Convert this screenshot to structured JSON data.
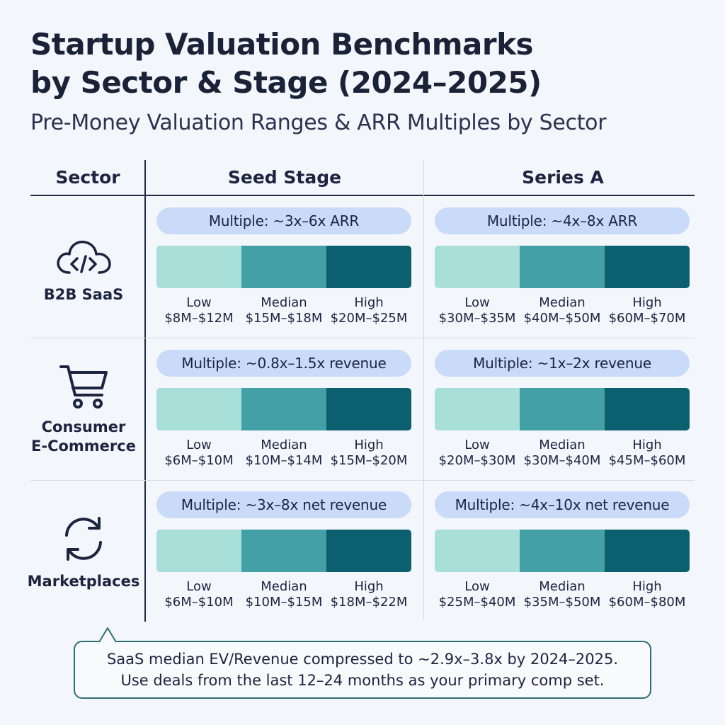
{
  "title": {
    "line1": "Startup Valuation Benchmarks",
    "line2": "by Sector & Stage (2024–2025)"
  },
  "subtitle": "Pre-Money Valuation Ranges & ARR Multiples by Sector",
  "columns": {
    "sector": "Sector",
    "seed": "Seed Stage",
    "series_a": "Series A"
  },
  "colors": {
    "low": "#a9dfd9",
    "median": "#44a0a7",
    "high": "#0c5f6f",
    "pill": "#c9dbf9"
  },
  "rows": [
    {
      "name": "B2B SaaS",
      "icon": "cloud-code-icon",
      "seed": {
        "multiple": "Multiple: ~3x–6x ARR",
        "low_label": "Low",
        "low_range": "$8M–$12M",
        "median_label": "Median",
        "median_range": "$15M–$18M",
        "high_label": "High",
        "high_range": "$20M–$25M"
      },
      "series_a": {
        "multiple": "Multiple: ~4x–8x ARR",
        "low_label": "Low",
        "low_range": "$30M–$35M",
        "median_label": "Median",
        "median_range": "$40M–$50M",
        "high_label": "High",
        "high_range": "$60M–$70M"
      }
    },
    {
      "name_line1": "Consumer",
      "name_line2": "E-Commerce",
      "icon": "shopping-cart-icon",
      "seed": {
        "multiple": "Multiple: ~0.8x–1.5x revenue",
        "low_label": "Low",
        "low_range": "$6M–$10M",
        "median_label": "Median",
        "median_range": "$10M–$14M",
        "high_label": "High",
        "high_range": "$15M–$20M"
      },
      "series_a": {
        "multiple": "Multiple: ~1x–2x revenue",
        "low_label": "Low",
        "low_range": "$20M–$30M",
        "median_label": "Median",
        "median_range": "$30M–$40M",
        "high_label": "High",
        "high_range": "$45M–$60M"
      }
    },
    {
      "name": "Marketplaces",
      "icon": "refresh-arrows-icon",
      "seed": {
        "multiple": "Multiple: ~3x–8x net revenue",
        "low_label": "Low",
        "low_range": "$6M–$10M",
        "median_label": "Median",
        "median_range": "$10M–$15M",
        "high_label": "High",
        "high_range": "$18M–$22M"
      },
      "series_a": {
        "multiple": "Multiple: ~4x–10x net revenue",
        "low_label": "Low",
        "low_range": "$25M–$40M",
        "median_label": "Median",
        "median_range": "$35M–$50M",
        "high_label": "High",
        "high_range": "$60M–$80M"
      }
    }
  ],
  "note": {
    "line1": "SaaS median EV/Revenue compressed to ~2.9x–3.8x by 2024–2025.",
    "line2": "Use deals from the last 12–24 months as your primary comp set."
  }
}
